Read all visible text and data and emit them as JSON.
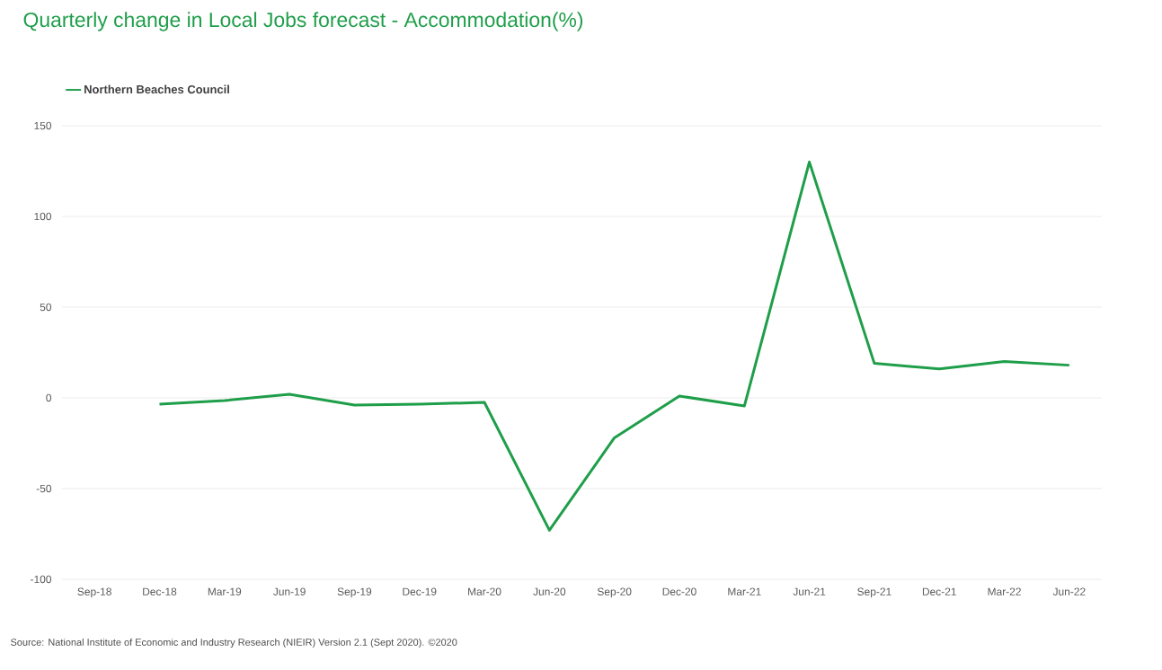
{
  "chart_data": {
    "type": "line",
    "title": "Quarterly change in Local Jobs forecast - Accommodation(%)",
    "categories": [
      "Sep-18",
      "Dec-18",
      "Mar-19",
      "Jun-19",
      "Sep-19",
      "Dec-19",
      "Mar-20",
      "Jun-20",
      "Sep-20",
      "Dec-20",
      "Mar-21",
      "Jun-21",
      "Sep-21",
      "Dec-21",
      "Mar-22",
      "Jun-22"
    ],
    "series": [
      {
        "name": "Northern Beaches Council",
        "color": "#1f9e4a",
        "values": [
          null,
          -3.5,
          -1.5,
          2,
          -4,
          -3.5,
          -2.5,
          -73,
          -22,
          1,
          -4.5,
          130,
          19,
          16,
          20,
          18
        ]
      }
    ],
    "ylim": [
      -100,
      150
    ],
    "yticks": [
      -100,
      -50,
      0,
      50,
      100,
      150
    ],
    "grid": "y",
    "legend": "top left",
    "annotations": [
      "Source: National Institute of Economic and Industry Research (NIEIR) Version 2.1 (Sept 2020). ©2020"
    ]
  }
}
